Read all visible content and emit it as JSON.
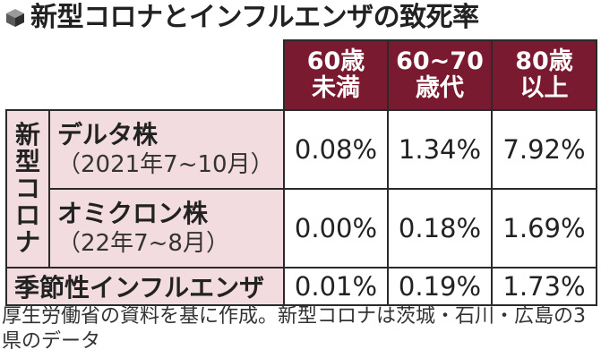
{
  "title": "新型コロナとインフルエンザの致死率",
  "colors": {
    "header_bg": "#7a1a30",
    "section_bg": "#f2dce0",
    "border": "#2a2a2a"
  },
  "headers": [
    {
      "line1": "60歳",
      "line2": "未満"
    },
    {
      "line1": "60~70",
      "line2": "歳代"
    },
    {
      "line1": "80歳",
      "line2": "以上"
    }
  ],
  "corona_label": [
    "新",
    "型",
    "コ",
    "ロ",
    "ナ"
  ],
  "rows": [
    {
      "name": "デルタ株",
      "period": "（2021年7~10月）",
      "values": [
        "0.08%",
        "1.34%",
        "7.92%"
      ]
    },
    {
      "name": "オミクロン株",
      "period": "（22年7~8月）",
      "values": [
        "0.00%",
        "0.18%",
        "1.69%"
      ]
    }
  ],
  "flu": {
    "name": "季節性インフルエンザ",
    "values": [
      "0.01%",
      "0.19%",
      "1.73%"
    ]
  },
  "note": "厚生労働省の資料を基に作成。新型コロナは茨城・石川・広島の3県のデータ"
}
